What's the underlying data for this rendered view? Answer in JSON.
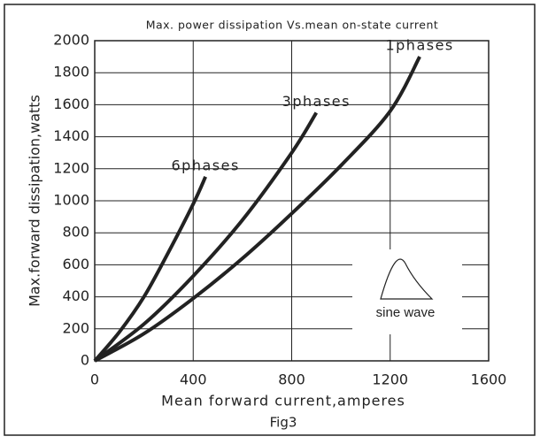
{
  "chart_data": {
    "type": "line",
    "title": "Max. power dissipation Vs.mean on-state current",
    "x_label": "Mean forward current,amperes",
    "y_label": "Max.forward dissipation,watts",
    "caption": "Fig3",
    "annotation": "sine wave",
    "xlim": [
      0,
      1600
    ],
    "xticks": [
      0,
      400,
      800,
      1200,
      1600
    ],
    "ylim": [
      0,
      2000
    ],
    "yticks": [
      0,
      200,
      400,
      600,
      800,
      1000,
      1200,
      1400,
      1600,
      1800,
      2000
    ],
    "grid": true,
    "series": [
      {
        "name": "1phases",
        "color": "#222222",
        "x": [
          0,
          200,
          400,
          600,
          800,
          1000,
          1200,
          1320
        ],
        "values": [
          0,
          170,
          390,
          640,
          920,
          1220,
          1560,
          1900
        ]
      },
      {
        "name": "3phases",
        "color": "#222222",
        "x": [
          0,
          200,
          400,
          600,
          800,
          900
        ],
        "values": [
          0,
          230,
          530,
          880,
          1300,
          1550
        ]
      },
      {
        "name": "6phases",
        "color": "#222222",
        "x": [
          0,
          100,
          200,
          300,
          400,
          450
        ],
        "values": [
          0,
          180,
          400,
          680,
          980,
          1150
        ]
      }
    ]
  }
}
